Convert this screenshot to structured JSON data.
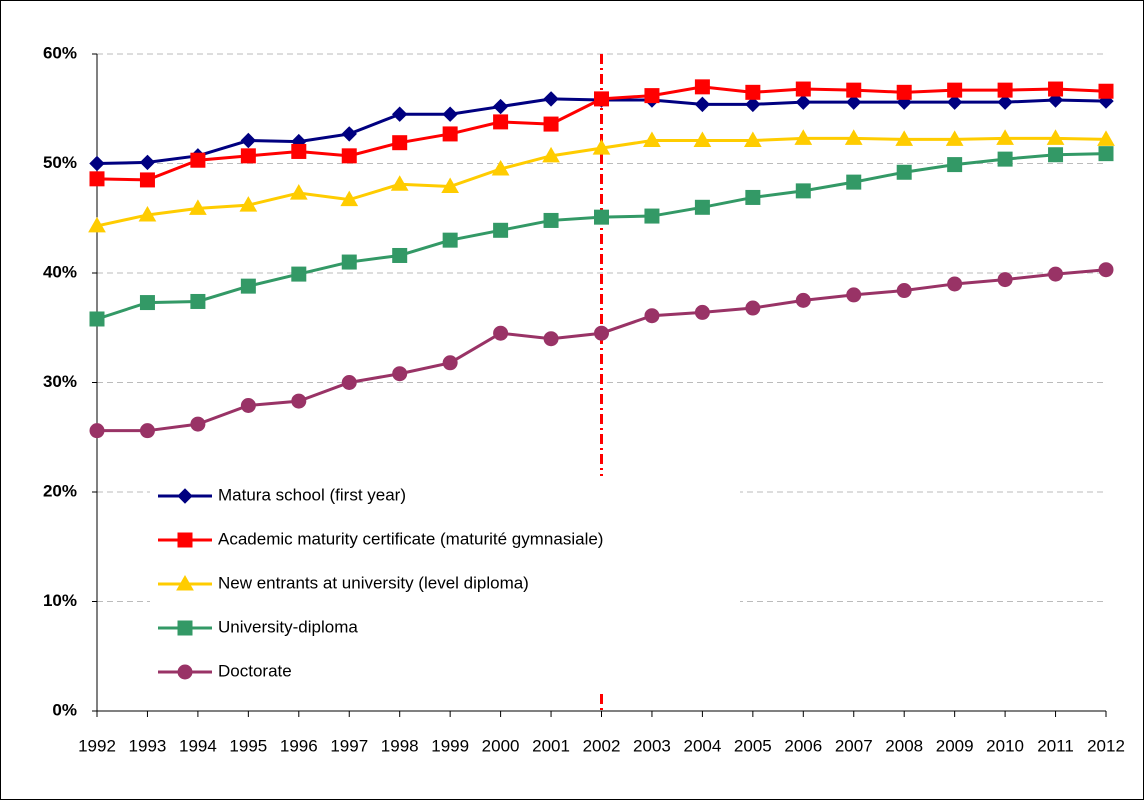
{
  "chart_data": {
    "type": "line",
    "categories": [
      "1992",
      "1993",
      "1994",
      "1995",
      "1996",
      "1997",
      "1998",
      "1999",
      "2000",
      "2001",
      "2002",
      "2003",
      "2004",
      "2005",
      "2006",
      "2007",
      "2008",
      "2009",
      "2010",
      "2011",
      "2012"
    ],
    "series": [
      {
        "name": "Matura school (first year)",
        "color": "#000080",
        "marker": "diamond",
        "values": [
          50.0,
          50.1,
          50.7,
          52.1,
          52.0,
          52.7,
          54.5,
          54.5,
          55.2,
          55.9,
          55.8,
          55.8,
          55.4,
          55.4,
          55.6,
          55.6,
          55.6,
          55.6,
          55.6,
          55.8,
          55.7
        ]
      },
      {
        "name": "Academic maturity certificate (maturité gymnasiale)",
        "color": "#ff0000",
        "marker": "square",
        "values": [
          48.6,
          48.5,
          50.3,
          50.7,
          51.1,
          50.7,
          51.9,
          52.7,
          53.8,
          53.6,
          55.9,
          56.2,
          57.0,
          56.5,
          56.8,
          56.7,
          56.5,
          56.7,
          56.7,
          56.8,
          56.6
        ]
      },
      {
        "name": "New entrants at university (level diploma)",
        "color": "#ffcc00",
        "marker": "triangle",
        "values": [
          44.3,
          45.3,
          45.9,
          46.2,
          47.3,
          46.7,
          48.1,
          47.9,
          49.5,
          50.7,
          51.4,
          52.1,
          52.1,
          52.1,
          52.3,
          52.3,
          52.2,
          52.2,
          52.3,
          52.3,
          52.2
        ]
      },
      {
        "name": "University-diploma",
        "color": "#339966",
        "marker": "square",
        "values": [
          35.8,
          37.3,
          37.4,
          38.8,
          39.9,
          41.0,
          41.6,
          43.0,
          43.9,
          44.8,
          45.1,
          45.2,
          46.0,
          46.9,
          47.5,
          48.3,
          49.2,
          49.9,
          50.4,
          50.8,
          50.9
        ]
      },
      {
        "name": "Doctorate",
        "color": "#993366",
        "marker": "circle",
        "values": [
          25.6,
          25.6,
          26.2,
          27.9,
          28.3,
          30.0,
          30.8,
          31.8,
          34.5,
          34.0,
          34.5,
          36.1,
          36.4,
          36.8,
          37.5,
          38.0,
          38.4,
          39.0,
          39.4,
          39.9,
          40.3
        ]
      }
    ],
    "ylim": [
      0,
      60
    ],
    "yticks": [
      {
        "value": 0,
        "label": "0%"
      },
      {
        "value": 10,
        "label": "10%"
      },
      {
        "value": 20,
        "label": "20%"
      },
      {
        "value": 30,
        "label": "30%"
      },
      {
        "value": 40,
        "label": "40%"
      },
      {
        "value": 50,
        "label": "50%"
      },
      {
        "value": 60,
        "label": "60%"
      }
    ],
    "grid": true,
    "legend": "lower left",
    "reference_line": {
      "x": "2002",
      "color": "#ff0000"
    }
  }
}
